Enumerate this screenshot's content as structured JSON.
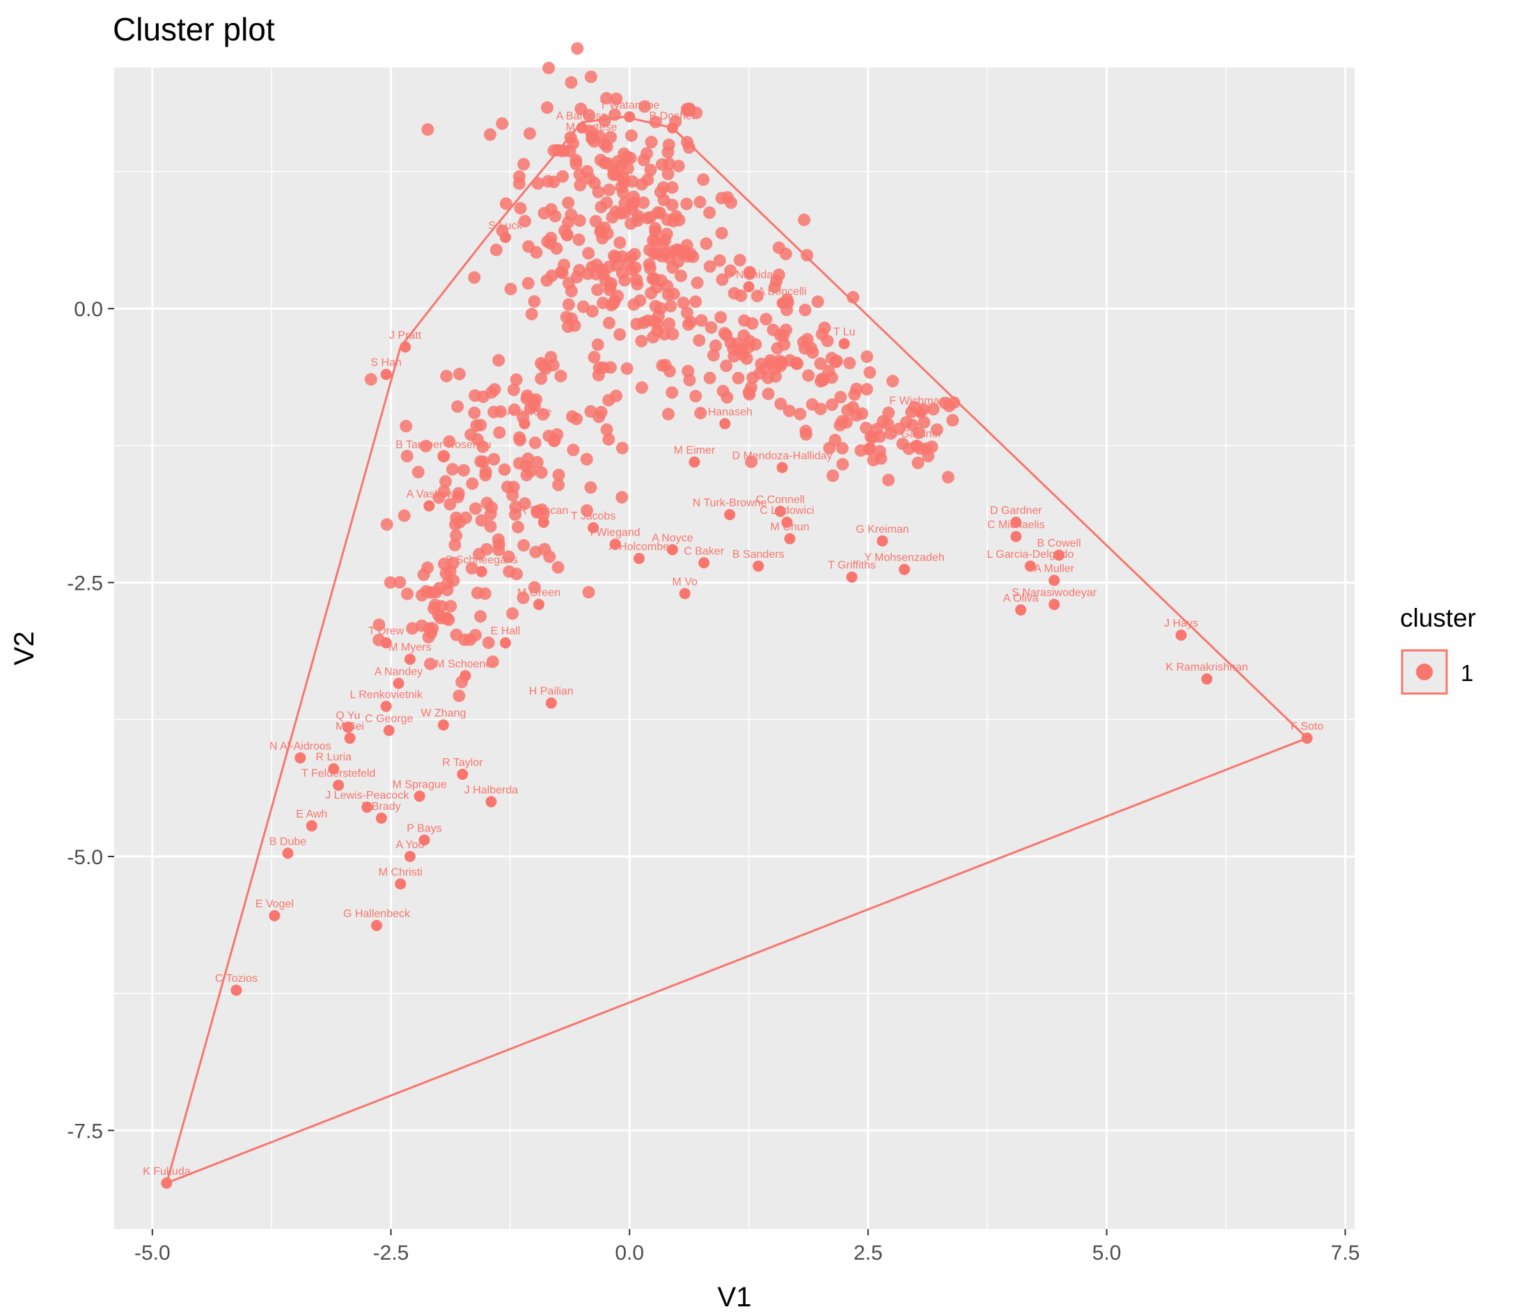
{
  "chart_data": {
    "type": "scatter",
    "title": "Cluster plot",
    "xlabel": "V1",
    "ylabel": "V2",
    "xlim": [
      -5.4,
      7.6
    ],
    "ylim": [
      -8.4,
      2.2
    ],
    "x_ticks": [
      -5.0,
      -2.5,
      0.0,
      2.5,
      5.0,
      7.5
    ],
    "x_tick_labels": [
      "-5.0",
      "-2.5",
      "0.0",
      "2.5",
      "5.0",
      "7.5"
    ],
    "y_ticks": [
      -7.5,
      -5.0,
      -2.5,
      0.0
    ],
    "y_tick_labels": [
      "-7.5",
      "-5.0",
      "-2.5",
      "0.0"
    ],
    "grid": true,
    "legend": {
      "title": "cluster",
      "placement": "right",
      "entries": [
        {
          "label": "1",
          "color": "#F8766D"
        }
      ]
    },
    "colors": {
      "cluster1": "#F8766D",
      "panel": "#EBEBEB",
      "grid": "#FFFFFF"
    },
    "hull": [
      [
        -4.85,
        -7.98
      ],
      [
        -2.4,
        -0.35
      ],
      [
        -1.5,
        0.65
      ],
      [
        -0.5,
        1.7
      ],
      [
        -0.05,
        1.75
      ],
      [
        0.45,
        1.65
      ],
      [
        7.1,
        -3.92
      ]
    ],
    "dense_core": [
      {
        "x": -0.2,
        "y": 1.0,
        "sx": 0.55,
        "sy": 0.55,
        "n": 180
      },
      {
        "x": 0.4,
        "y": 0.2,
        "sx": 0.7,
        "sy": 0.35,
        "n": 120
      },
      {
        "x": 1.5,
        "y": -0.5,
        "sx": 0.55,
        "sy": 0.25,
        "n": 80
      },
      {
        "x": 2.6,
        "y": -1.2,
        "sx": 0.5,
        "sy": 0.22,
        "n": 60
      },
      {
        "x": -1.0,
        "y": -1.0,
        "sx": 0.6,
        "sy": 0.35,
        "n": 80
      },
      {
        "x": -1.5,
        "y": -2.0,
        "sx": 0.45,
        "sy": 0.35,
        "n": 60
      },
      {
        "x": -2.0,
        "y": -2.9,
        "sx": 0.3,
        "sy": 0.35,
        "n": 40
      }
    ],
    "points": [
      {
        "label": "K Fukuda",
        "x": -4.85,
        "y": -7.98
      },
      {
        "label": "F Soto",
        "x": 7.1,
        "y": -3.92
      },
      {
        "label": "C Tozios",
        "x": -4.12,
        "y": -6.22
      },
      {
        "label": "E Vogel",
        "x": -3.72,
        "y": -5.54
      },
      {
        "label": "G Hallenbeck",
        "x": -2.65,
        "y": -5.63
      },
      {
        "label": "B Dube",
        "x": -3.58,
        "y": -4.97
      },
      {
        "label": "E Awh",
        "x": -3.33,
        "y": -4.72
      },
      {
        "label": "N Al-Aidroos",
        "x": -3.45,
        "y": -4.1
      },
      {
        "label": "R Luria",
        "x": -3.1,
        "y": -4.2
      },
      {
        "label": "M Bei",
        "x": -2.93,
        "y": -3.92
      },
      {
        "label": "Q Yu",
        "x": -2.95,
        "y": -3.82
      },
      {
        "label": "L Renkovietnik",
        "x": -2.55,
        "y": -3.63
      },
      {
        "label": "C George",
        "x": -2.52,
        "y": -3.85
      },
      {
        "label": "W Zhang",
        "x": -1.95,
        "y": -3.8
      },
      {
        "label": "J Lewis-Peacock",
        "x": -2.75,
        "y": -4.55
      },
      {
        "label": "T Brady",
        "x": -2.6,
        "y": -4.65
      },
      {
        "label": "T Felderstefeld",
        "x": -3.05,
        "y": -4.35
      },
      {
        "label": "M Sprague",
        "x": -2.2,
        "y": -4.45
      },
      {
        "label": "J Halberda",
        "x": -1.45,
        "y": -4.5
      },
      {
        "label": "R Taylor",
        "x": -1.75,
        "y": -4.25
      },
      {
        "label": "P Bays",
        "x": -2.15,
        "y": -4.85
      },
      {
        "label": "A Yoo",
        "x": -2.3,
        "y": -5.0
      },
      {
        "label": "M Christi",
        "x": -2.4,
        "y": -5.25
      },
      {
        "label": "H Pailian",
        "x": -0.82,
        "y": -3.6
      },
      {
        "label": "A Nandey",
        "x": -2.42,
        "y": -3.42
      },
      {
        "label": "M Schoener",
        "x": -1.72,
        "y": -3.35
      },
      {
        "label": "E Hall",
        "x": -1.3,
        "y": -3.05
      },
      {
        "label": "T Drew",
        "x": -2.55,
        "y": -3.05
      },
      {
        "label": "M Myers",
        "x": -2.3,
        "y": -3.2
      },
      {
        "label": "M Green",
        "x": -0.95,
        "y": -2.7
      },
      {
        "label": "S Schneegans",
        "x": -1.55,
        "y": -2.4
      },
      {
        "label": "A Oliva",
        "x": 4.1,
        "y": -2.75
      },
      {
        "label": "S Narasiwodeyar",
        "x": 4.45,
        "y": -2.7
      },
      {
        "label": "J Hays",
        "x": 5.78,
        "y": -2.98
      },
      {
        "label": "K Ramakrishnan",
        "x": 6.05,
        "y": -3.38
      },
      {
        "label": "M Vo",
        "x": 0.58,
        "y": -2.6
      },
      {
        "label": "A Noyce",
        "x": 0.45,
        "y": -2.2
      },
      {
        "label": "A Holcombe",
        "x": 0.1,
        "y": -2.28
      },
      {
        "label": "C Baker",
        "x": 0.78,
        "y": -2.32
      },
      {
        "label": "B Sanders",
        "x": 1.35,
        "y": -2.35
      },
      {
        "label": "T Griffiths",
        "x": 2.33,
        "y": -2.45
      },
      {
        "label": "Y Mohsenzadeh",
        "x": 2.88,
        "y": -2.38
      },
      {
        "label": "G Kreiman",
        "x": 2.65,
        "y": -2.12
      },
      {
        "label": "M Chun",
        "x": 1.68,
        "y": -2.1
      },
      {
        "label": "C Ludowici",
        "x": 1.65,
        "y": -1.95
      },
      {
        "label": "C Connell",
        "x": 1.58,
        "y": -1.85
      },
      {
        "label": "N Turk-Browne",
        "x": 1.05,
        "y": -1.88
      },
      {
        "label": "I Wiegand",
        "x": -0.15,
        "y": -2.15
      },
      {
        "label": "L Garcia-Delgado",
        "x": 4.2,
        "y": -2.35
      },
      {
        "label": "A Muller",
        "x": 4.45,
        "y": -2.48
      },
      {
        "label": "B Cowell",
        "x": 4.5,
        "y": -2.25
      },
      {
        "label": "C Michaelis",
        "x": 4.05,
        "y": -2.08
      },
      {
        "label": "D Gardner",
        "x": 4.05,
        "y": -1.95
      },
      {
        "label": "F Wichmann",
        "x": 3.05,
        "y": -0.95
      },
      {
        "label": "T Lu",
        "x": 2.25,
        "y": -0.32
      },
      {
        "label": "J Pratt",
        "x": -2.35,
        "y": -0.35
      },
      {
        "label": "S Han",
        "x": -2.55,
        "y": -0.6
      },
      {
        "label": "B Tamber-Rosenau",
        "x": -1.95,
        "y": -1.35
      },
      {
        "label": "A Vaskov",
        "x": -2.1,
        "y": -1.8
      },
      {
        "label": "T Watanabe",
        "x": 0.0,
        "y": 1.75
      },
      {
        "label": "B Dosher",
        "x": 0.45,
        "y": 1.65
      },
      {
        "label": "A Barbosa",
        "x": -0.5,
        "y": 1.65
      },
      {
        "label": "M Cortese",
        "x": -0.4,
        "y": 1.55
      },
      {
        "label": "S Luck",
        "x": -1.3,
        "y": 0.65
      },
      {
        "label": "D Mendoza-Halliday",
        "x": 1.6,
        "y": -1.45
      },
      {
        "label": "M Eimer",
        "x": 0.68,
        "y": -1.4
      },
      {
        "label": "S Hanaseh",
        "x": 1.0,
        "y": -1.05
      },
      {
        "label": "C Gardner",
        "x": 3.0,
        "y": -1.25
      },
      {
        "label": "A Ambrose",
        "x": -1.1,
        "y": -1.05
      },
      {
        "label": "R Duncan",
        "x": -0.9,
        "y": -1.95
      },
      {
        "label": "T Jacobs",
        "x": -0.38,
        "y": -2.0
      },
      {
        "label": "D Nishida",
        "x": 1.25,
        "y": 0.2
      },
      {
        "label": "A Boncelli",
        "x": 1.6,
        "y": 0.05
      }
    ]
  }
}
